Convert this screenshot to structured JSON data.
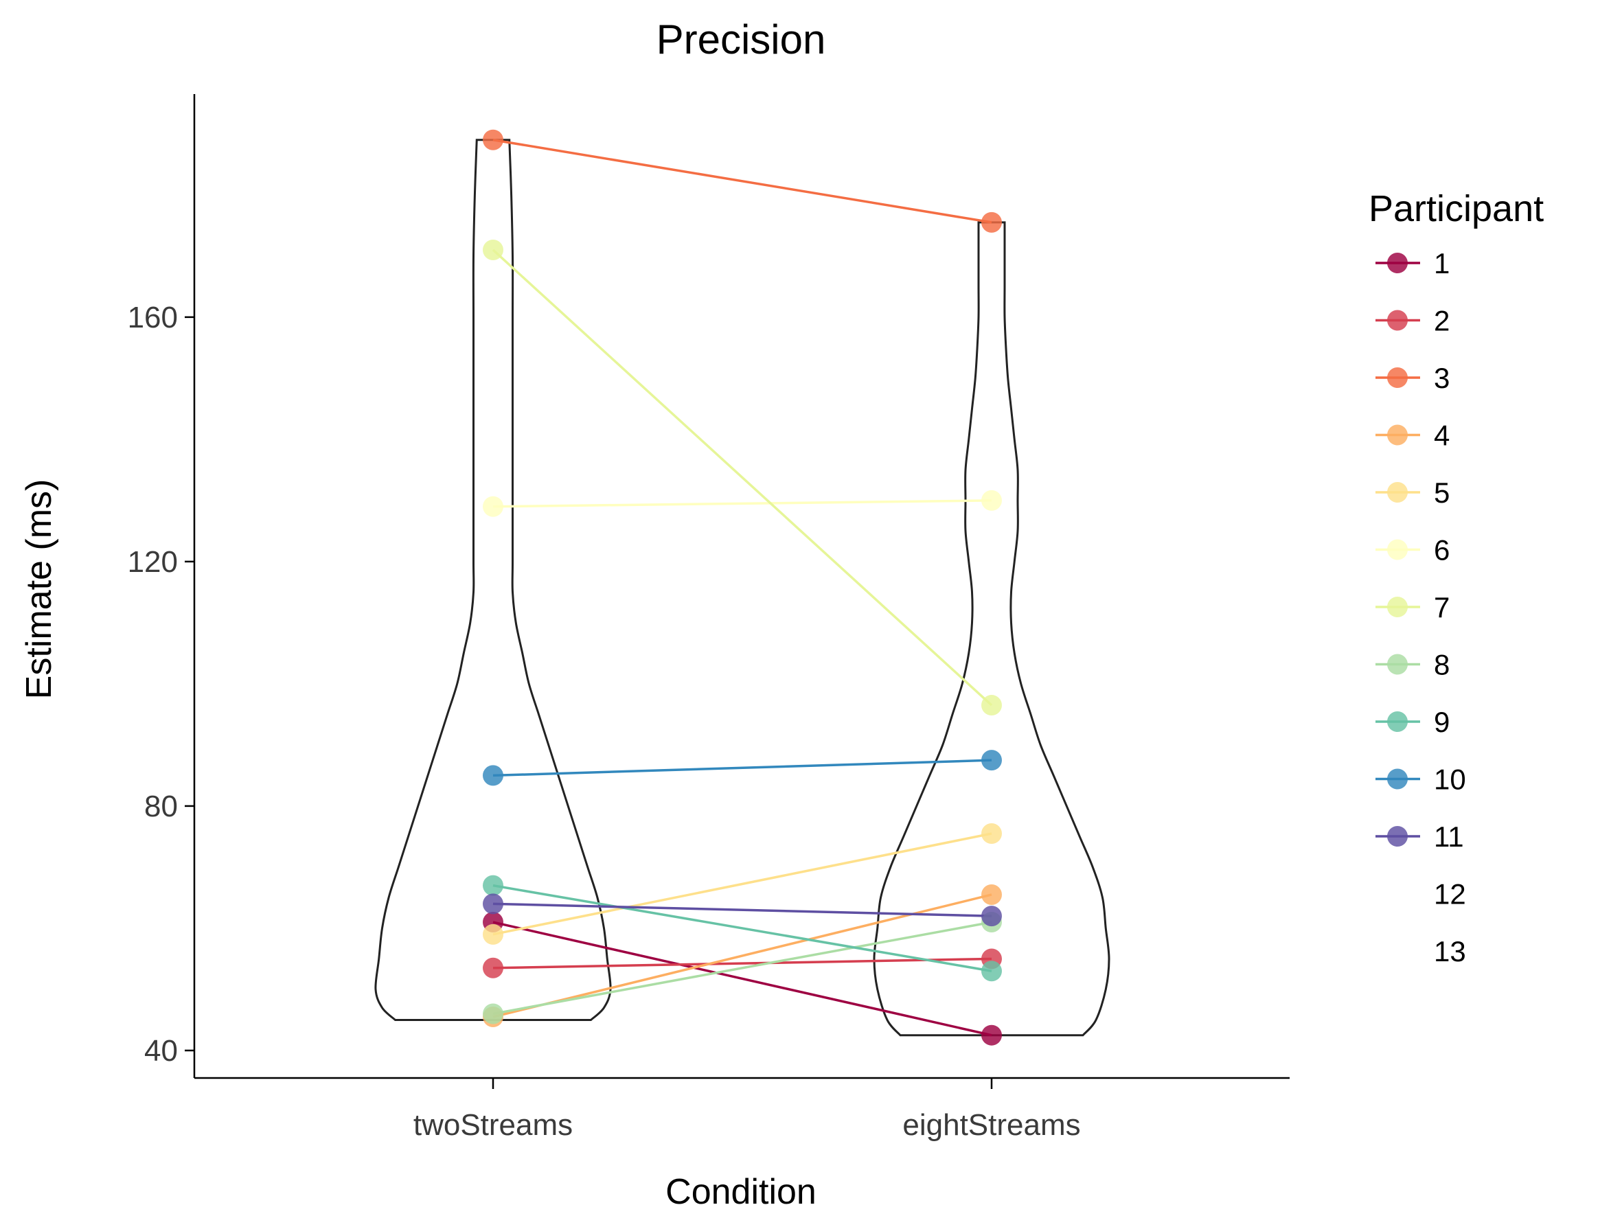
{
  "chart_data": {
    "type": "violin",
    "title": "Precision",
    "xlabel": "Condition",
    "ylabel": "Estimate (ms)",
    "categories": [
      "twoStreams",
      "eightStreams"
    ],
    "y_ticks": [
      40,
      80,
      120,
      160
    ],
    "ylim": [
      35.5,
      196.5
    ],
    "grid": false,
    "legend": {
      "title": "Participant",
      "placement": "right"
    },
    "series": [
      {
        "name": "1",
        "color": "#9e0142",
        "values": [
          61.0,
          42.5
        ]
      },
      {
        "name": "2",
        "color": "#d53e4f",
        "values": [
          53.5,
          55.0
        ]
      },
      {
        "name": "3",
        "color": "#f46d43",
        "values": [
          189.0,
          175.5
        ]
      },
      {
        "name": "4",
        "color": "#fdae61",
        "values": [
          45.5,
          65.5
        ]
      },
      {
        "name": "5",
        "color": "#fee08b",
        "values": [
          59.0,
          75.5
        ]
      },
      {
        "name": "6",
        "color": "#ffffbf",
        "values": [
          129.0,
          130.0
        ]
      },
      {
        "name": "7",
        "color": "#e6f598",
        "values": [
          171.0,
          96.5
        ]
      },
      {
        "name": "8",
        "color": "#abdda4",
        "values": [
          46.0,
          61.0
        ]
      },
      {
        "name": "9",
        "color": "#66c2a5",
        "values": [
          67.0,
          53.0
        ]
      },
      {
        "name": "10",
        "color": "#3288bd",
        "values": [
          85.0,
          87.5
        ]
      },
      {
        "name": "11",
        "color": "#5e4fa2",
        "values": [
          64.0,
          62.0
        ]
      },
      {
        "name": "12",
        "color": "#ffffff",
        "values": []
      },
      {
        "name": "13",
        "color": "#ffffff",
        "values": []
      }
    ],
    "violins": [
      {
        "category": "twoStreams",
        "ymin": 45.0,
        "ymax": 189.0,
        "half_widths": [
          [
            45.0,
            15.0
          ],
          [
            47.0,
            17.0
          ],
          [
            50.0,
            18.0
          ],
          [
            55.0,
            17.5
          ],
          [
            60.0,
            17.0
          ],
          [
            65.0,
            16.0
          ],
          [
            70.0,
            14.5
          ],
          [
            75.0,
            13.0
          ],
          [
            80.0,
            11.5
          ],
          [
            85.0,
            10.0
          ],
          [
            90.0,
            8.5
          ],
          [
            95.0,
            7.0
          ],
          [
            100.0,
            5.5
          ],
          [
            105.0,
            4.5
          ],
          [
            110.0,
            3.5
          ],
          [
            115.0,
            3.0
          ],
          [
            120.0,
            3.0
          ],
          [
            130.0,
            3.0
          ],
          [
            140.0,
            3.0
          ],
          [
            150.0,
            3.0
          ],
          [
            160.0,
            3.0
          ],
          [
            170.0,
            3.0
          ],
          [
            180.0,
            2.8
          ],
          [
            189.0,
            2.5
          ]
        ]
      },
      {
        "category": "eightStreams",
        "ymin": 42.5,
        "ymax": 175.5,
        "half_widths": [
          [
            42.5,
            14.0
          ],
          [
            45.0,
            16.0
          ],
          [
            50.0,
            17.5
          ],
          [
            55.0,
            18.0
          ],
          [
            60.0,
            17.5
          ],
          [
            65.0,
            17.0
          ],
          [
            70.0,
            15.5
          ],
          [
            75.0,
            13.5
          ],
          [
            80.0,
            11.5
          ],
          [
            85.0,
            9.5
          ],
          [
            90.0,
            7.5
          ],
          [
            95.0,
            6.0
          ],
          [
            100.0,
            4.5
          ],
          [
            105.0,
            3.5
          ],
          [
            110.0,
            3.0
          ],
          [
            115.0,
            3.0
          ],
          [
            120.0,
            3.5
          ],
          [
            125.0,
            4.0
          ],
          [
            130.0,
            4.0
          ],
          [
            135.0,
            4.0
          ],
          [
            140.0,
            3.5
          ],
          [
            145.0,
            3.0
          ],
          [
            150.0,
            2.5
          ],
          [
            155.0,
            2.2
          ],
          [
            160.0,
            2.0
          ],
          [
            165.0,
            2.0
          ],
          [
            170.0,
            2.0
          ],
          [
            175.5,
            2.0
          ]
        ]
      }
    ]
  }
}
